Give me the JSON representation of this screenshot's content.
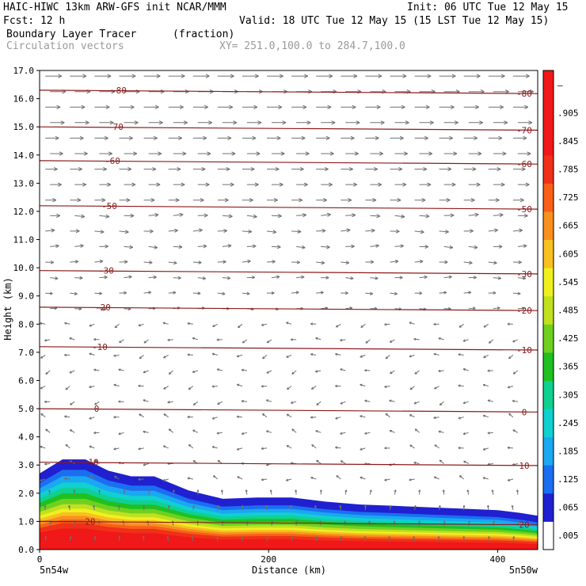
{
  "header": {
    "model": "HAIC-HIWC 13km ARW-GFS init   NCAR/MMM",
    "init": "Init: 06 UTC Tue 12 May 15",
    "fcst": "Fcst:   12 h",
    "valid": "Valid: 18 UTC Tue 12 May 15 (15 LST Tue 12 May 15)",
    "field": "Boundary Layer Tracer",
    "units": "(fraction)",
    "vectors": "Circulation vectors",
    "xy": "XY= 251.0,100.0 to 284.7,100.0"
  },
  "colors": {
    "isotherm": "#8b1a1a",
    "arrow": "#707070",
    "colorbar": [
      "#ffffff",
      "#2020d0",
      "#1a6ff0",
      "#1aa8f0",
      "#10d0d0",
      "#10d090",
      "#20c020",
      "#70d020",
      "#c0e020",
      "#f0f020",
      "#f8c020",
      "#f89020",
      "#f86018",
      "#f03018",
      "#f01818"
    ]
  },
  "chart_data": {
    "type": "cross-section",
    "title": "Boundary Layer Tracer",
    "xlabel": "Distance (km)",
    "ylabel": "Height (km)",
    "xlim": [
      0,
      435
    ],
    "ylim": [
      0,
      17
    ],
    "x_ticks": [
      "0",
      "200",
      "400"
    ],
    "y_ticks": [
      "0.0",
      "1.0",
      "2.0",
      "3.0",
      "4.0",
      "5.0",
      "6.0",
      "7.0",
      "8.0",
      "9.0",
      "10.0",
      "11.0",
      "12.0",
      "13.0",
      "14.0",
      "15.0",
      "16.0",
      "17.0"
    ],
    "x_end_labels": {
      "left": "5n54w",
      "right": "5n50w"
    },
    "colorbar_labels": [
      ".005",
      ".065",
      ".125",
      ".185",
      ".245",
      ".305",
      ".365",
      ".425",
      ".485",
      ".545",
      ".605",
      ".665",
      ".725",
      ".785",
      ".845",
      ".905",
      "–"
    ],
    "boundary_layer_top_km": {
      "x": [
        0,
        20,
        40,
        60,
        80,
        100,
        130,
        160,
        190,
        220,
        250,
        280,
        310,
        340,
        370,
        400,
        420,
        435
      ],
      "y": [
        2.7,
        3.2,
        3.2,
        2.8,
        2.6,
        2.6,
        2.1,
        1.8,
        1.85,
        1.85,
        1.7,
        1.6,
        1.55,
        1.5,
        1.45,
        1.4,
        1.3,
        1.2
      ]
    },
    "isotherms": [
      {
        "label": "-80",
        "height_km": 16.3
      },
      {
        "label": "-70",
        "height_km": 15.0
      },
      {
        "label": "-60",
        "height_km": 13.8
      },
      {
        "label": "-50",
        "height_km": 12.2
      },
      {
        "label": "-30",
        "height_km": 9.9
      },
      {
        "label": "-20",
        "height_km": 8.6
      },
      {
        "label": "-10",
        "height_km": 7.2
      },
      {
        "label": "0",
        "height_km": 5.0
      },
      {
        "label": "10",
        "height_km": 3.1
      },
      {
        "label": "20",
        "height_km": 1.0
      }
    ]
  }
}
